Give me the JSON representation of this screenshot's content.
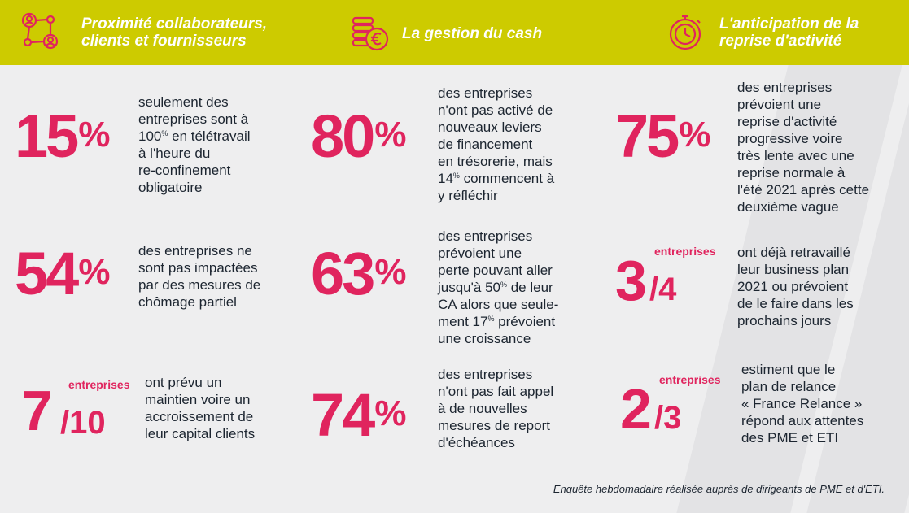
{
  "header": {
    "col1_title_l1": "Proximité collaborateurs,",
    "col1_title_l2": "clients et fournisseurs",
    "col1_icon": "people-network-icon",
    "col2_title": "La gestion du cash",
    "col2_icon": "coins-euro-icon",
    "col3_title_l1": "L'anticipation de la",
    "col3_title_l2": "reprise d'activité",
    "col3_icon": "stopwatch-icon"
  },
  "colors": {
    "header_bg": "#cdcb00",
    "accent": "#e0245e",
    "text": "#1c2530",
    "bg": "#eeeeef"
  },
  "stats": {
    "s1": {
      "value": "15",
      "unit": "%",
      "lines": [
        "seulement des",
        "entreprises sont à",
        "100",
        "%",
        " en télétravail",
        "à l'heure du",
        "re-confinement",
        "obligatoire"
      ]
    },
    "s2": {
      "value": "80",
      "unit": "%",
      "lines": [
        "des entreprises",
        "n'ont pas activé de",
        "nouveaux leviers",
        "de financement",
        "en trésorerie, mais",
        "14",
        "%",
        " commencent à",
        "y réfléchir"
      ]
    },
    "s3": {
      "value": "75",
      "unit": "%",
      "lines": [
        "des entreprises",
        "prévoient une",
        "reprise d'activité",
        "progressive voire",
        "très lente avec une",
        "reprise normale à",
        "l'été 2021 après cette",
        "deuxième vague"
      ]
    },
    "s4": {
      "value": "54",
      "unit": "%",
      "lines": [
        "des entreprises ne",
        "sont pas impactées",
        "par des mesures de",
        "chômage partiel"
      ]
    },
    "s5": {
      "value": "63",
      "unit": "%",
      "lines": [
        "des entreprises",
        "prévoient une",
        "perte pouvant aller",
        "jusqu'à 50",
        "%",
        " de leur",
        "CA alors que seule-",
        "ment 17",
        "%",
        " prévoient",
        "une croissance"
      ]
    },
    "s6": {
      "num": "3",
      "den": "/4",
      "label": "entreprises",
      "lines": [
        "ont déjà retravaillé",
        "leur business plan",
        "2021 ou prévoient",
        "de le faire dans les",
        "prochains jours"
      ]
    },
    "s7": {
      "num": "7",
      "den": "/10",
      "label": "entreprises",
      "lines": [
        "ont prévu un",
        "maintien voire un",
        "accroissement de",
        "leur capital clients"
      ]
    },
    "s8": {
      "value": "74",
      "unit": "%",
      "lines": [
        "des entreprises",
        "n'ont pas fait appel",
        "à de nouvelles",
        "mesures de report",
        "d'échéances"
      ]
    },
    "s9": {
      "num": "2",
      "den": "/3",
      "label": "entreprises",
      "lines": [
        "estiment que le",
        "plan de relance",
        "« France Relance »",
        "répond aux attentes",
        "des PME et ETI"
      ]
    }
  },
  "footer": "Enquête hebdomadaire réalisée auprès de dirigeants de PME et d'ETI."
}
